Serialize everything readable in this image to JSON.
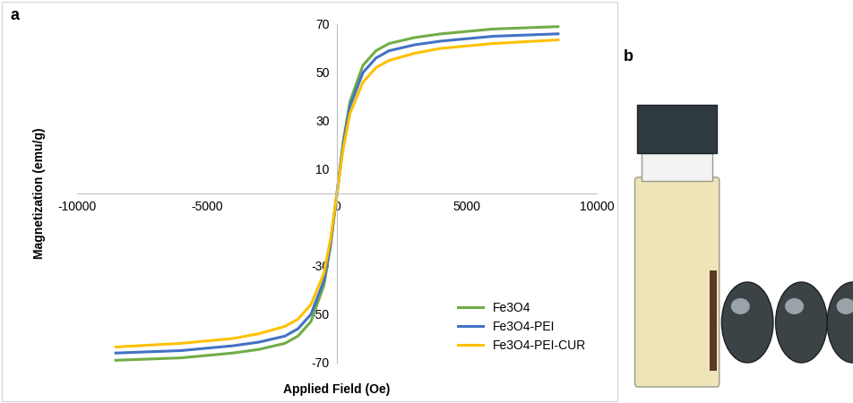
{
  "chart_data": {
    "type": "line",
    "annotations": [
      "a"
    ],
    "x_label": "Applied Field (Oe)",
    "y_label": "Magnetization (emu/g)",
    "x": [
      -8500,
      -6000,
      -4000,
      -3000,
      -2000,
      -1500,
      -1000,
      -500,
      -250,
      0,
      250,
      500,
      1000,
      1500,
      2000,
      3000,
      4000,
      6000,
      8500
    ],
    "series": [
      {
        "name": "Fe3O4",
        "color": "#70ad47",
        "values": [
          -69,
          -68,
          -66,
          -64.5,
          -62,
          -59,
          -53,
          -38,
          -22,
          0,
          22,
          38,
          53,
          59,
          62,
          64.5,
          66,
          68,
          69
        ]
      },
      {
        "name": "Fe3O4-PEI",
        "color": "#4472c4",
        "values": [
          -66,
          -65,
          -63,
          -61.5,
          -59,
          -56,
          -50,
          -36,
          -21,
          0,
          21,
          36,
          50,
          56,
          59,
          61.5,
          63,
          65,
          66
        ]
      },
      {
        "name": "Fe3O4-PEI-CUR",
        "color": "#ffc000",
        "values": [
          -63.5,
          -62,
          -60,
          -58,
          -55,
          -52,
          -46,
          -33,
          -19,
          0,
          19,
          33,
          46,
          52,
          55,
          58,
          60,
          62,
          63.5
        ]
      }
    ],
    "xlim": [
      -10000,
      10000
    ],
    "xticks": [
      -10000,
      -5000,
      0,
      5000,
      10000
    ],
    "ylim": [
      -70,
      70
    ],
    "yticks": [
      -70,
      -50,
      -30,
      10,
      30,
      50,
      70
    ],
    "grid": false,
    "legend": "lower right"
  },
  "photo": {
    "label": "b"
  }
}
